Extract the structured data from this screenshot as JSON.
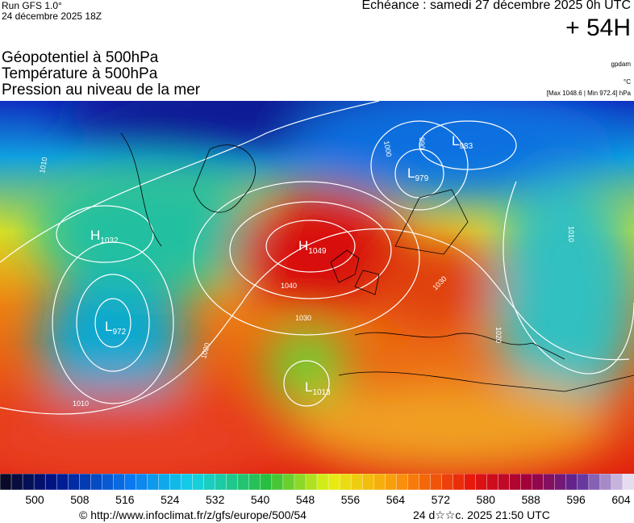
{
  "header": {
    "run": "Run GFS 1.0°",
    "run_date": "24 décembre 2025 18Z",
    "valid": "Echéance : samedi 27 décembre 2025 0h UTC",
    "lead": "+ 54H"
  },
  "titles": [
    "Géopotentiel à 500hPa",
    "Température à 500hPa",
    "Pression au niveau de la mer"
  ],
  "units": {
    "geopotential": "gpdam",
    "temperature": "°C",
    "pressure": "[Max 1048.6 | Min 972.4] hPa"
  },
  "centers": [
    {
      "letter": "L",
      "value": "983"
    },
    {
      "letter": "L",
      "value": "979"
    },
    {
      "letter": "H",
      "value": "1049"
    },
    {
      "letter": "H",
      "value": "1032"
    },
    {
      "letter": "L",
      "value": "972"
    },
    {
      "letter": "L",
      "value": "1013"
    }
  ],
  "isobar_labels": [
    "1040",
    "1030",
    "1020",
    "1010",
    "1000",
    "990",
    "1030",
    "1020",
    "1010",
    "1010"
  ],
  "colorbar": {
    "labels": [
      "500",
      "508",
      "516",
      "524",
      "532",
      "540",
      "548",
      "556",
      "564",
      "572",
      "580",
      "588",
      "596",
      "604"
    ]
  },
  "footer": {
    "source": "© http://www.infoclimat.fr/z/gfs/europe/500/54",
    "generated": "24 d☆☆c. 2025 21:50 UTC"
  }
}
